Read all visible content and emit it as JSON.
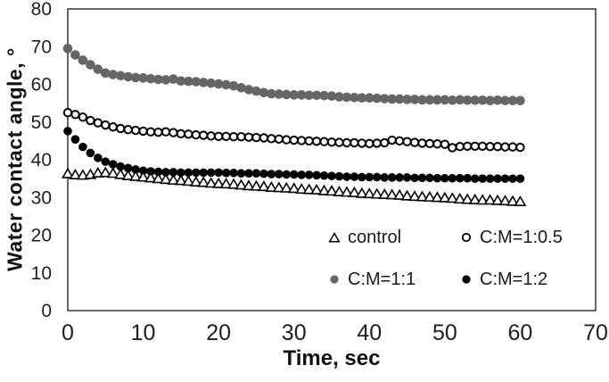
{
  "chart": {
    "y_axis_title": "Water contact angle, °",
    "x_axis_title": "Time, sec"
  },
  "chart_data": {
    "type": "scatter",
    "title": "",
    "xlabel": "Time, sec",
    "ylabel": "Water contact angle, °",
    "xlim": [
      0,
      70
    ],
    "ylim": [
      0,
      80
    ],
    "x_ticks": [
      0,
      10,
      20,
      30,
      40,
      50,
      60,
      70
    ],
    "y_ticks": [
      0,
      10,
      20,
      30,
      40,
      50,
      60,
      70,
      80
    ],
    "grid": false,
    "legend_position": "inside-bottom-right",
    "x": [
      0,
      1,
      2,
      3,
      4,
      5,
      6,
      7,
      8,
      9,
      10,
      11,
      12,
      13,
      14,
      15,
      16,
      17,
      18,
      19,
      20,
      21,
      22,
      23,
      24,
      25,
      26,
      27,
      28,
      29,
      30,
      31,
      32,
      33,
      34,
      35,
      36,
      37,
      38,
      39,
      40,
      41,
      42,
      43,
      44,
      45,
      46,
      47,
      48,
      49,
      50,
      51,
      52,
      53,
      54,
      55,
      56,
      57,
      58,
      59,
      60
    ],
    "series": [
      {
        "name": "control",
        "marker": "open-triangle",
        "color": "#000000",
        "fill": "#ffffff",
        "size": 11,
        "draw_order": 4,
        "values": [
          36.3,
          36.0,
          35.9,
          36.1,
          36.5,
          36.6,
          36.4,
          36.1,
          35.8,
          35.6,
          35.4,
          35.2,
          35.0,
          34.8,
          34.6,
          34.5,
          34.3,
          34.1,
          34.0,
          33.8,
          33.7,
          33.6,
          33.5,
          33.3,
          33.1,
          33.0,
          32.9,
          32.7,
          32.6,
          32.5,
          32.4,
          32.2,
          32.1,
          32.0,
          31.8,
          31.7,
          31.5,
          31.4,
          31.3,
          31.1,
          31.0,
          30.9,
          30.8,
          30.7,
          30.6,
          30.4,
          30.3,
          30.2,
          30.1,
          30.0,
          29.9,
          29.8,
          29.6,
          29.5,
          29.4,
          29.3,
          29.3,
          29.2,
          29.1,
          29.0,
          28.9
        ]
      },
      {
        "name": "C:M=1:0.5",
        "marker": "open-circle",
        "color": "#000000",
        "fill": "#ffffff",
        "size": 10.4,
        "draw_order": 2,
        "values": [
          52.5,
          52.0,
          51.3,
          50.4,
          49.8,
          49.2,
          48.7,
          48.3,
          48.0,
          47.8,
          47.6,
          47.4,
          47.3,
          47.4,
          47.2,
          46.9,
          46.8,
          46.6,
          46.5,
          46.3,
          46.2,
          46.2,
          46.1,
          46.1,
          46.0,
          45.9,
          45.8,
          45.6,
          45.5,
          45.3,
          45.2,
          45.1,
          45.0,
          44.9,
          44.8,
          44.7,
          44.6,
          44.5,
          44.5,
          44.4,
          44.3,
          44.4,
          44.5,
          45.2,
          45.0,
          44.8,
          44.6,
          44.4,
          44.3,
          44.2,
          44.1,
          43.2,
          43.5,
          43.6,
          43.6,
          43.6,
          43.5,
          43.5,
          43.4,
          43.4,
          43.3
        ]
      },
      {
        "name": "C:M=1:1",
        "marker": "filled-circle",
        "color": "#666666",
        "fill": "#666666",
        "size": 10.6,
        "draw_order": 1,
        "values": [
          69.5,
          67.8,
          66.4,
          65.2,
          64.0,
          63.0,
          62.6,
          62.3,
          62.0,
          61.8,
          61.7,
          61.5,
          61.3,
          61.2,
          61.4,
          60.9,
          60.8,
          60.7,
          60.5,
          60.3,
          60.1,
          59.9,
          59.6,
          59.1,
          58.6,
          58.2,
          57.8,
          57.5,
          57.4,
          57.3,
          57.2,
          57.2,
          57.1,
          57.1,
          57.0,
          56.9,
          56.7,
          56.6,
          56.5,
          56.4,
          56.4,
          56.3,
          56.2,
          56.1,
          56.1,
          56.0,
          56.0,
          55.9,
          55.9,
          55.9,
          55.9,
          55.8,
          55.9,
          55.8,
          55.8,
          55.8,
          55.7,
          55.8,
          55.7,
          55.7,
          55.7
        ]
      },
      {
        "name": "C:M=1:2",
        "marker": "filled-circle",
        "color": "#000000",
        "fill": "#000000",
        "size": 9.6,
        "draw_order": 3,
        "values": [
          47.6,
          45.4,
          43.4,
          41.8,
          40.5,
          39.5,
          38.8,
          38.2,
          37.8,
          37.4,
          37.1,
          36.9,
          36.8,
          36.7,
          36.7,
          36.6,
          36.6,
          36.6,
          36.6,
          36.6,
          36.6,
          36.5,
          36.5,
          36.4,
          36.4,
          36.4,
          36.3,
          36.2,
          36.2,
          36.1,
          36.1,
          36.0,
          36.0,
          35.9,
          35.8,
          35.7,
          35.6,
          35.5,
          35.5,
          35.4,
          35.4,
          35.4,
          35.3,
          35.3,
          35.3,
          35.3,
          35.2,
          35.2,
          35.2,
          35.1,
          35.1,
          35.1,
          35.1,
          35.1,
          35.0,
          35.0,
          35.0,
          35.0,
          35.0,
          35.0,
          35.0
        ]
      }
    ]
  }
}
